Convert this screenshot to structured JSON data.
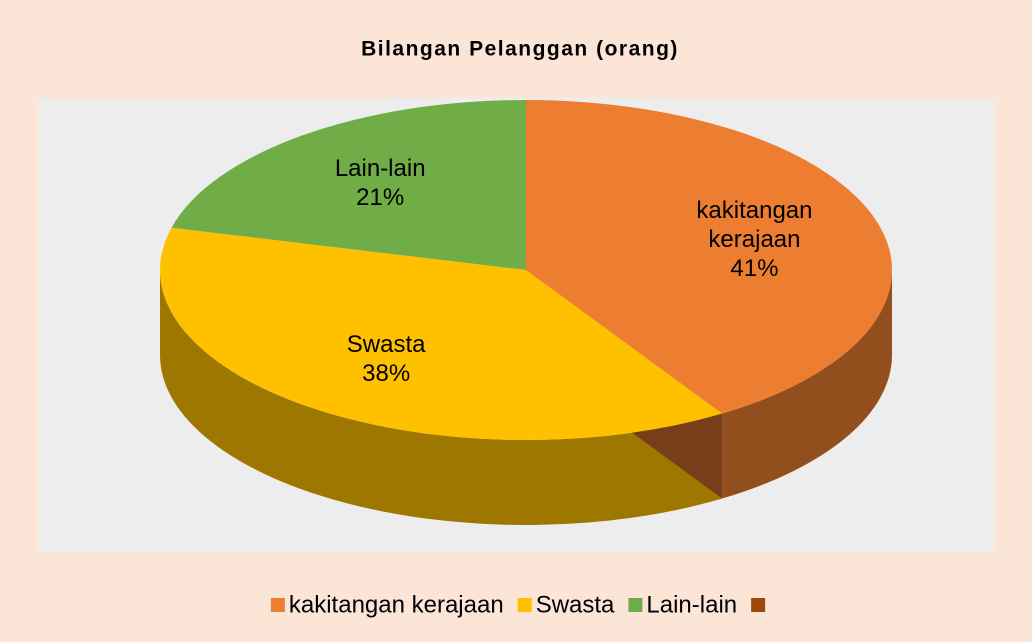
{
  "chart_data": {
    "type": "pie3d",
    "title": "Bilangan Pelanggan (orang)",
    "categories": [
      "kakitangan kerajaan",
      "Swasta",
      "Lain-lain",
      null
    ],
    "values": [
      41,
      38,
      21,
      0
    ],
    "value_labels": [
      "41%",
      "38%",
      "21%",
      null
    ],
    "colors": [
      "#ED7D31",
      "#FFC000",
      "#70AD47",
      "#9E480E"
    ],
    "legend": "bottom"
  }
}
